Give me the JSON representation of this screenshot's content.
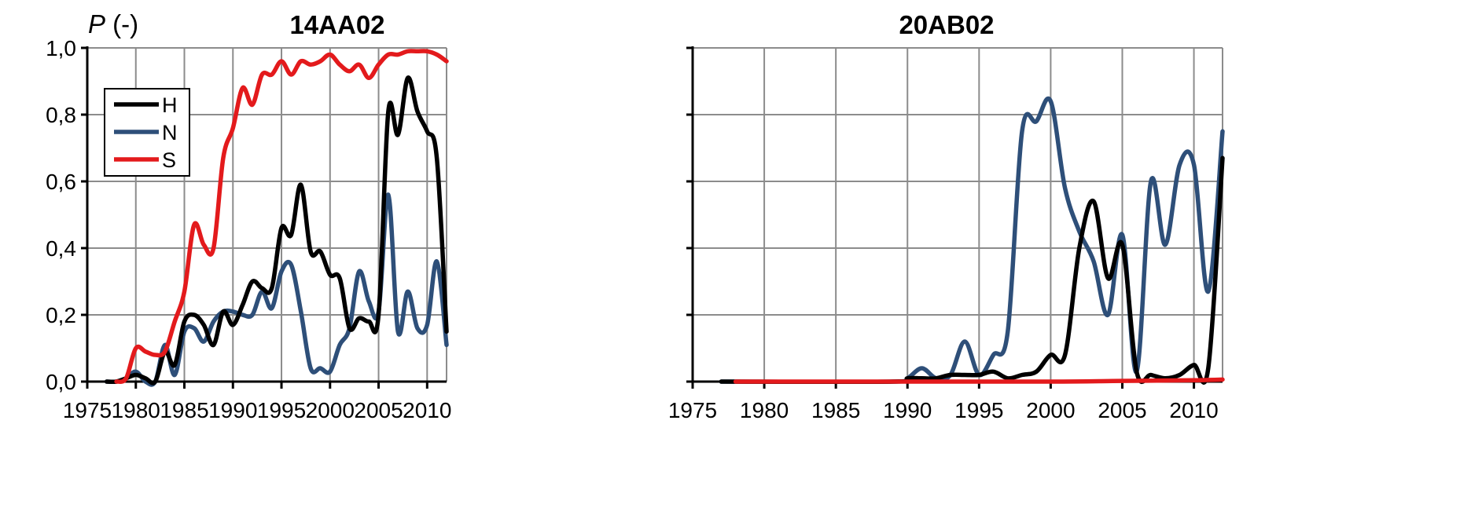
{
  "y_axis_label_symbol": "P",
  "y_axis_label_unit": " (-)",
  "chart_data": [
    {
      "type": "line",
      "title": "14AA02",
      "ylabel": "P (-)",
      "xlim": [
        1975,
        2012
      ],
      "ylim": [
        0,
        1
      ],
      "xticks": [
        "1975",
        "1980",
        "1985",
        "1990",
        "1995",
        "2000",
        "2005",
        "2010"
      ],
      "yticks": [
        "0,0",
        "0,2",
        "0,4",
        "0,6",
        "0,8",
        "1,0"
      ],
      "grid": true,
      "legend": "top-left",
      "series": [
        {
          "name": "H",
          "color": "#000000",
          "x": [
            1977,
            1978,
            1979,
            1980,
            1981,
            1982,
            1983,
            1984,
            1985,
            1986,
            1987,
            1988,
            1989,
            1990,
            1991,
            1992,
            1993,
            1994,
            1995,
            1996,
            1997,
            1998,
            1999,
            2000,
            2001,
            2002,
            2003,
            2004,
            2005,
            2006,
            2007,
            2008,
            2009,
            2010,
            2011,
            2012
          ],
          "y": [
            0,
            0,
            0.01,
            0.02,
            0.01,
            0,
            0.09,
            0.05,
            0.18,
            0.2,
            0.17,
            0.11,
            0.21,
            0.17,
            0.23,
            0.3,
            0.28,
            0.28,
            0.46,
            0.44,
            0.59,
            0.39,
            0.39,
            0.32,
            0.31,
            0.16,
            0.19,
            0.18,
            0.2,
            0.81,
            0.74,
            0.91,
            0.81,
            0.75,
            0.67,
            0.15
          ]
        },
        {
          "name": "N",
          "color": "#2e4f79",
          "x": [
            1977,
            1978,
            1979,
            1980,
            1981,
            1982,
            1983,
            1984,
            1985,
            1986,
            1987,
            1988,
            1989,
            1990,
            1991,
            1992,
            1993,
            1994,
            1995,
            1996,
            1997,
            1998,
            1999,
            2000,
            2001,
            2002,
            2003,
            2004,
            2005,
            2006,
            2007,
            2008,
            2009,
            2010,
            2011,
            2012
          ],
          "y": [
            0,
            0,
            0.01,
            0.03,
            0,
            0,
            0.11,
            0.02,
            0.15,
            0.16,
            0.12,
            0.18,
            0.21,
            0.21,
            0.2,
            0.2,
            0.27,
            0.22,
            0.33,
            0.35,
            0.21,
            0.04,
            0.04,
            0.03,
            0.11,
            0.16,
            0.33,
            0.24,
            0.21,
            0.56,
            0.15,
            0.27,
            0.16,
            0.17,
            0.36,
            0.11
          ]
        },
        {
          "name": "S",
          "color": "#e31a1c",
          "x": [
            1978,
            1979,
            1980,
            1981,
            1982,
            1983,
            1984,
            1985,
            1986,
            1987,
            1988,
            1989,
            1990,
            1991,
            1992,
            1993,
            1994,
            1995,
            1996,
            1997,
            1998,
            1999,
            2000,
            2001,
            2002,
            2003,
            2004,
            2005,
            2006,
            2007,
            2008,
            2009,
            2010,
            2011,
            2012
          ],
          "y": [
            0,
            0.01,
            0.1,
            0.09,
            0.08,
            0.09,
            0.18,
            0.27,
            0.47,
            0.41,
            0.4,
            0.67,
            0.76,
            0.88,
            0.83,
            0.92,
            0.92,
            0.96,
            0.92,
            0.96,
            0.95,
            0.96,
            0.98,
            0.95,
            0.93,
            0.95,
            0.91,
            0.95,
            0.98,
            0.98,
            0.99,
            0.99,
            0.99,
            0.98,
            0.96
          ]
        }
      ]
    },
    {
      "type": "line",
      "title": "20AB02",
      "xlim": [
        1975,
        2012
      ],
      "ylim": [
        0,
        1
      ],
      "xticks": [
        "1975",
        "1980",
        "1985",
        "1990",
        "1995",
        "2000",
        "2005",
        "2010"
      ],
      "grid": true,
      "series": [
        {
          "name": "H",
          "color": "#000000",
          "x": [
            1977,
            1989,
            1990,
            1991,
            1992,
            1993,
            1994,
            1995,
            1996,
            1997,
            1998,
            1999,
            2000,
            2001,
            2002,
            2003,
            2004,
            2005,
            2006,
            2007,
            2008,
            2009,
            2010,
            2011,
            2012
          ],
          "y": [
            0,
            0,
            0.01,
            0.01,
            0.01,
            0.02,
            0.02,
            0.02,
            0.03,
            0.01,
            0.02,
            0.03,
            0.08,
            0.08,
            0.4,
            0.54,
            0.31,
            0.41,
            0.03,
            0.02,
            0.01,
            0.02,
            0.05,
            0.04,
            0.67
          ]
        },
        {
          "name": "N",
          "color": "#2e4f79",
          "x": [
            1977,
            1989,
            1990,
            1991,
            1992,
            1993,
            1994,
            1995,
            1996,
            1997,
            1998,
            1999,
            2000,
            2001,
            2002,
            2003,
            2004,
            2005,
            2006,
            2007,
            2008,
            2009,
            2010,
            2011,
            2012
          ],
          "y": [
            0,
            0,
            0.01,
            0.04,
            0.01,
            0.02,
            0.12,
            0.02,
            0.08,
            0.15,
            0.75,
            0.78,
            0.84,
            0.58,
            0.45,
            0.36,
            0.2,
            0.44,
            0.03,
            0.6,
            0.41,
            0.65,
            0.65,
            0.27,
            0.75
          ]
        },
        {
          "name": "S",
          "color": "#e31a1c",
          "x": [
            1978,
            1990,
            2000,
            2005,
            2010,
            2012
          ],
          "y": [
            0,
            0,
            0,
            0.002,
            0.004,
            0.006
          ]
        }
      ]
    }
  ]
}
